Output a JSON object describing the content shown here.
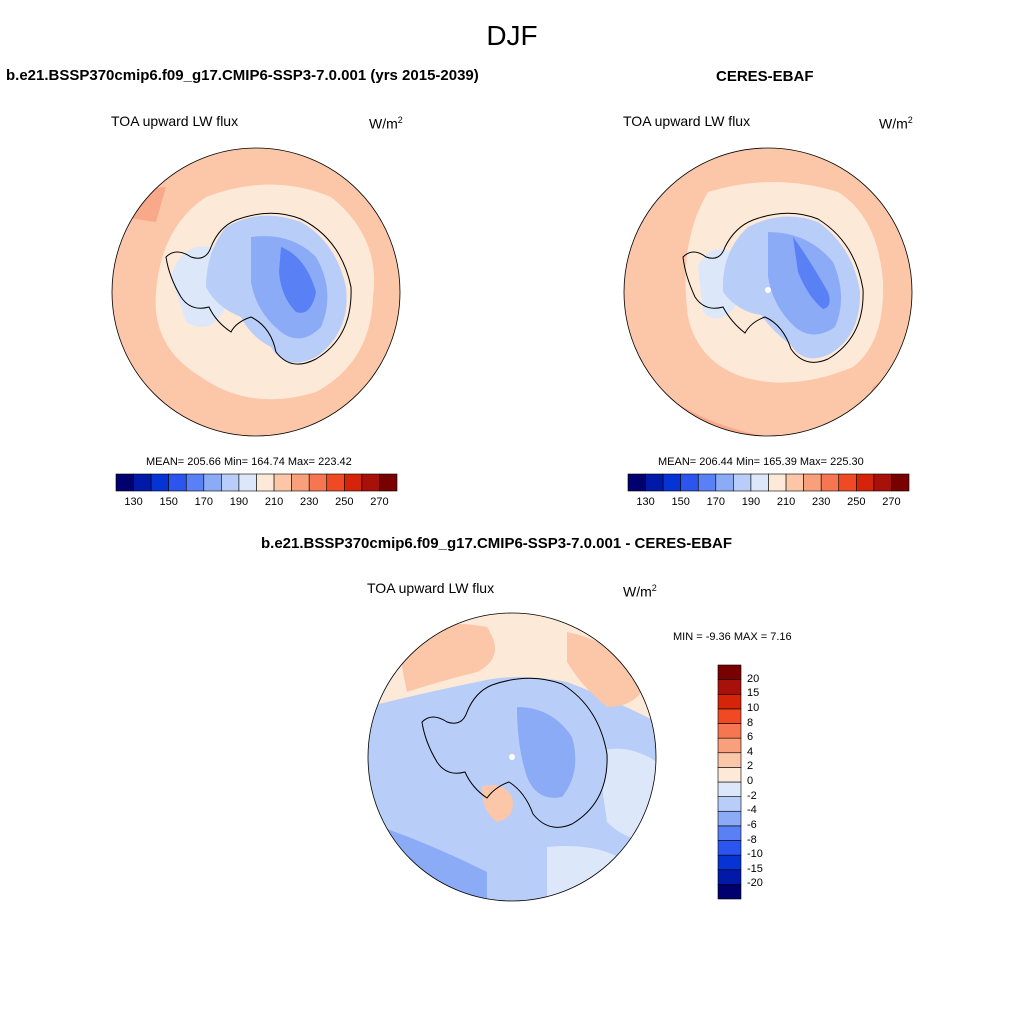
{
  "figure": {
    "season": "DJF"
  },
  "panels": [
    {
      "title": "b.e21.BSSP370cmip6.f09_g17.CMIP6-SSP3-7.0.001 (yrs 2015-2039)",
      "variable": "TOA upward LW flux",
      "units_base": "W/m",
      "units_exp": "2",
      "stats_text": "MEAN= 205.66  Min= 164.74  Max= 223.42"
    },
    {
      "title": "CERES-EBAF",
      "variable": "TOA upward LW flux",
      "units_base": "W/m",
      "units_exp": "2",
      "stats_text": "MEAN= 206.44  Min= 165.39  Max= 225.30"
    },
    {
      "title": "b.e21.BSSP370cmip6.f09_g17.CMIP6-SSP3-7.0.001 - CERES-EBAF",
      "variable": "TOA upward LW flux",
      "units_base": "W/m",
      "units_exp": "2",
      "stats_text": "MIN =  -9.36 MAX =   7.16"
    }
  ],
  "colorbar_abs": {
    "colors": [
      "#00006e",
      "#0019a8",
      "#0633d4",
      "#2b55ee",
      "#5a80f5",
      "#8cabf7",
      "#b8cdf8",
      "#dce8fa",
      "#fde9d8",
      "#fcc6a9",
      "#f89f7c",
      "#f57650",
      "#ef4a24",
      "#d4250a",
      "#a8100a",
      "#780000"
    ],
    "tick_labels": [
      "130",
      "150",
      "170",
      "190",
      "210",
      "230",
      "250",
      "270"
    ]
  },
  "colorbar_diff": {
    "colors": [
      "#00006e",
      "#0019a8",
      "#0633d4",
      "#2b55ee",
      "#5a80f5",
      "#8cabf7",
      "#b8cdf8",
      "#dce8fa",
      "#fde9d8",
      "#fcc6a9",
      "#f89f7c",
      "#f57650",
      "#ef4a24",
      "#d4250a",
      "#a8100a",
      "#780000"
    ],
    "tick_labels": [
      "-20",
      "-15",
      "-10",
      "-8",
      "-6",
      "-4",
      "-2",
      "0",
      "2",
      "4",
      "6",
      "8",
      "10",
      "15",
      "20"
    ]
  }
}
